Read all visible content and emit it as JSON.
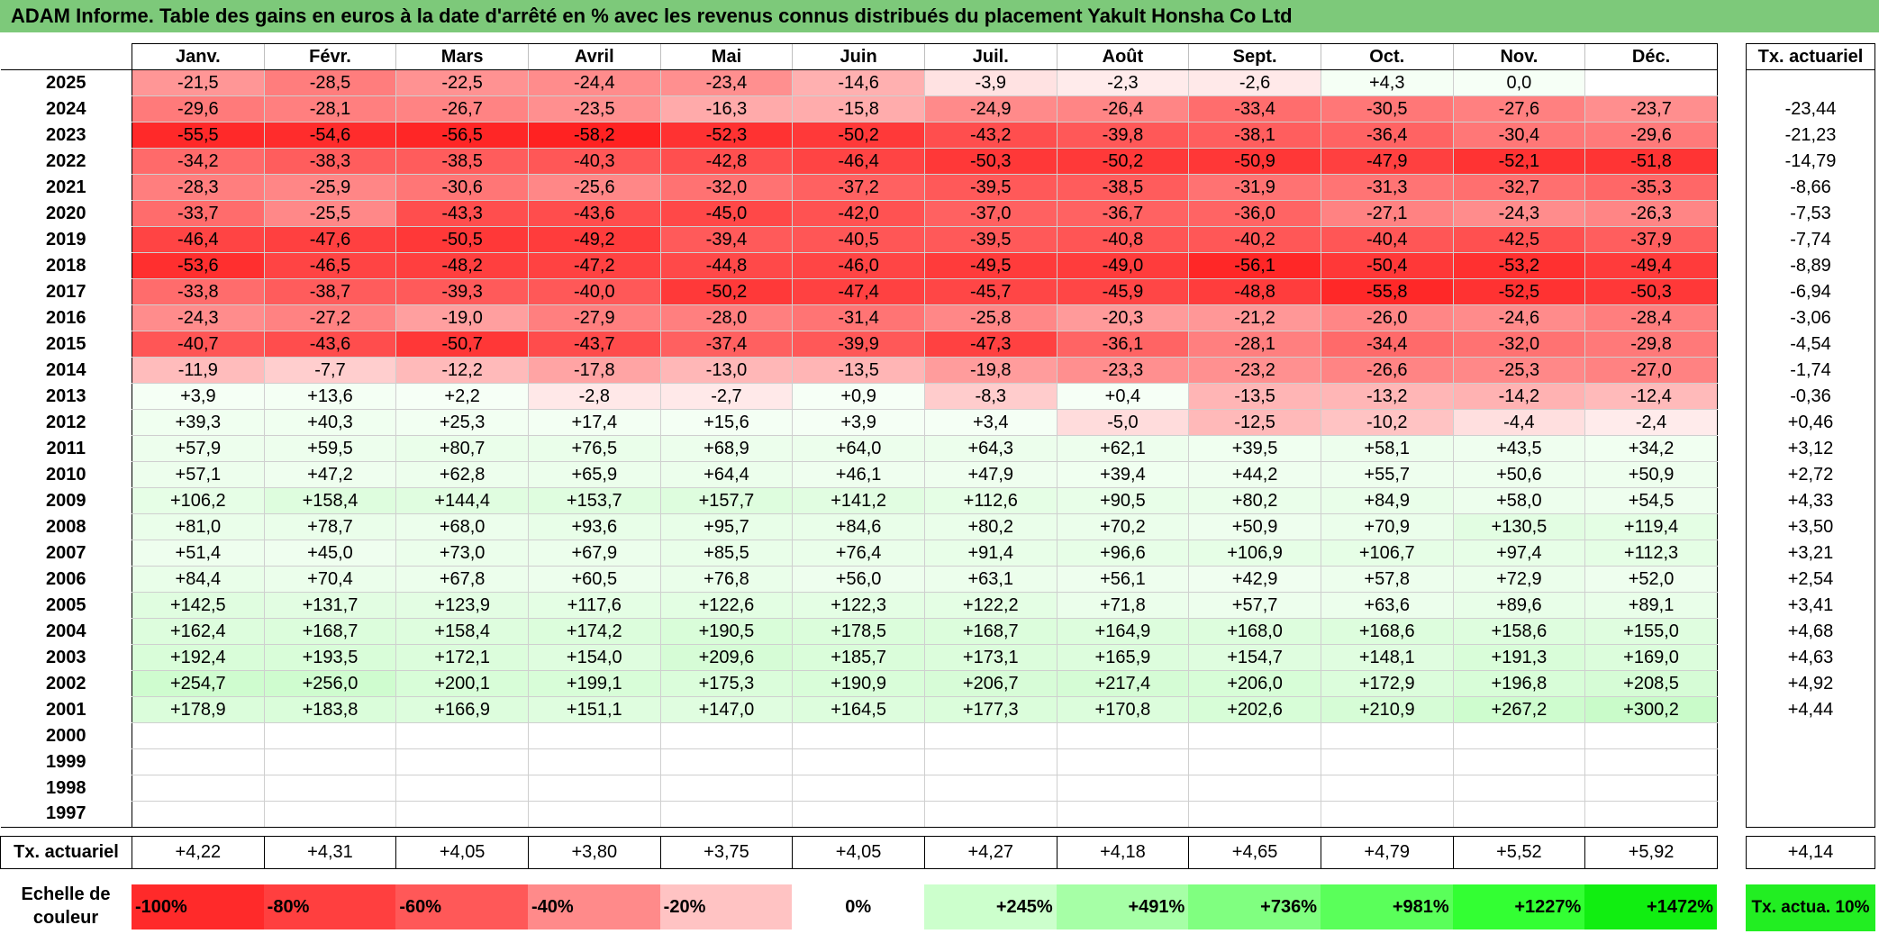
{
  "title": "ADAM Informe. Table des gains en euros à la date d'arrêté en % avec les revenus connus distribués du placement Yakult Honsha Co Ltd",
  "months": [
    "Janv.",
    "Févr.",
    "Mars",
    "Avril",
    "Mai",
    "Juin",
    "Juil.",
    "Août",
    "Sept.",
    "Oct.",
    "Nov.",
    "Déc."
  ],
  "actu_header": "Tx. actuariel",
  "rows": [
    {
      "year": "2025",
      "values": [
        "-21,5",
        "-28,5",
        "-22,5",
        "-24,4",
        "-23,4",
        "-14,6",
        "-3,9",
        "-2,3",
        "-2,6",
        "+4,3",
        "0,0",
        ""
      ],
      "actu": ""
    },
    {
      "year": "2024",
      "values": [
        "-29,6",
        "-28,1",
        "-26,7",
        "-23,5",
        "-16,3",
        "-15,8",
        "-24,9",
        "-26,4",
        "-33,4",
        "-30,5",
        "-27,6",
        "-23,7"
      ],
      "actu": "-23,44"
    },
    {
      "year": "2023",
      "values": [
        "-55,5",
        "-54,6",
        "-56,5",
        "-58,2",
        "-52,3",
        "-50,2",
        "-43,2",
        "-39,8",
        "-38,1",
        "-36,4",
        "-30,4",
        "-29,6"
      ],
      "actu": "-21,23"
    },
    {
      "year": "2022",
      "values": [
        "-34,2",
        "-38,3",
        "-38,5",
        "-40,3",
        "-42,8",
        "-46,4",
        "-50,3",
        "-50,2",
        "-50,9",
        "-47,9",
        "-52,1",
        "-51,8"
      ],
      "actu": "-14,79"
    },
    {
      "year": "2021",
      "values": [
        "-28,3",
        "-25,9",
        "-30,6",
        "-25,6",
        "-32,0",
        "-37,2",
        "-39,5",
        "-38,5",
        "-31,9",
        "-31,3",
        "-32,7",
        "-35,3"
      ],
      "actu": "-8,66"
    },
    {
      "year": "2020",
      "values": [
        "-33,7",
        "-25,5",
        "-43,3",
        "-43,6",
        "-45,0",
        "-42,0",
        "-37,0",
        "-36,7",
        "-36,0",
        "-27,1",
        "-24,3",
        "-26,3"
      ],
      "actu": "-7,53"
    },
    {
      "year": "2019",
      "values": [
        "-46,4",
        "-47,6",
        "-50,5",
        "-49,2",
        "-39,4",
        "-40,5",
        "-39,5",
        "-40,8",
        "-40,2",
        "-40,4",
        "-42,5",
        "-37,9"
      ],
      "actu": "-7,74"
    },
    {
      "year": "2018",
      "values": [
        "-53,6",
        "-46,5",
        "-48,2",
        "-47,2",
        "-44,8",
        "-46,0",
        "-49,5",
        "-49,0",
        "-56,1",
        "-50,4",
        "-53,2",
        "-49,4"
      ],
      "actu": "-8,89"
    },
    {
      "year": "2017",
      "values": [
        "-33,8",
        "-38,7",
        "-39,3",
        "-40,0",
        "-50,2",
        "-47,4",
        "-45,7",
        "-45,9",
        "-48,8",
        "-55,8",
        "-52,5",
        "-50,3"
      ],
      "actu": "-6,94"
    },
    {
      "year": "2016",
      "values": [
        "-24,3",
        "-27,2",
        "-19,0",
        "-27,9",
        "-28,0",
        "-31,4",
        "-25,8",
        "-20,3",
        "-21,2",
        "-26,0",
        "-24,6",
        "-28,4"
      ],
      "actu": "-3,06"
    },
    {
      "year": "2015",
      "values": [
        "-40,7",
        "-43,6",
        "-50,7",
        "-43,7",
        "-37,4",
        "-39,9",
        "-47,3",
        "-36,1",
        "-28,1",
        "-34,4",
        "-32,0",
        "-29,8"
      ],
      "actu": "-4,54"
    },
    {
      "year": "2014",
      "values": [
        "-11,9",
        "-7,7",
        "-12,2",
        "-17,8",
        "-13,0",
        "-13,5",
        "-19,8",
        "-23,3",
        "-23,2",
        "-26,6",
        "-25,3",
        "-27,0"
      ],
      "actu": "-1,74"
    },
    {
      "year": "2013",
      "values": [
        "+3,9",
        "+13,6",
        "+2,2",
        "-2,8",
        "-2,7",
        "+0,9",
        "-8,3",
        "+0,4",
        "-13,5",
        "-13,2",
        "-14,2",
        "-12,4"
      ],
      "actu": "-0,36"
    },
    {
      "year": "2012",
      "values": [
        "+39,3",
        "+40,3",
        "+25,3",
        "+17,4",
        "+15,6",
        "+3,9",
        "+3,4",
        "-5,0",
        "-12,5",
        "-10,2",
        "-4,4",
        "-2,4"
      ],
      "actu": "+0,46"
    },
    {
      "year": "2011",
      "values": [
        "+57,9",
        "+59,5",
        "+80,7",
        "+76,5",
        "+68,9",
        "+64,0",
        "+64,3",
        "+62,1",
        "+39,5",
        "+58,1",
        "+43,5",
        "+34,2"
      ],
      "actu": "+3,12"
    },
    {
      "year": "2010",
      "values": [
        "+57,1",
        "+47,2",
        "+62,8",
        "+65,9",
        "+64,4",
        "+46,1",
        "+47,9",
        "+39,4",
        "+44,2",
        "+55,7",
        "+50,6",
        "+50,9"
      ],
      "actu": "+2,72"
    },
    {
      "year": "2009",
      "values": [
        "+106,2",
        "+158,4",
        "+144,4",
        "+153,7",
        "+157,7",
        "+141,2",
        "+112,6",
        "+90,5",
        "+80,2",
        "+84,9",
        "+58,0",
        "+54,5"
      ],
      "actu": "+4,33"
    },
    {
      "year": "2008",
      "values": [
        "+81,0",
        "+78,7",
        "+68,0",
        "+93,6",
        "+95,7",
        "+84,6",
        "+80,2",
        "+70,2",
        "+50,9",
        "+70,9",
        "+130,5",
        "+119,4"
      ],
      "actu": "+3,50"
    },
    {
      "year": "2007",
      "values": [
        "+51,4",
        "+45,0",
        "+73,0",
        "+67,9",
        "+85,5",
        "+76,4",
        "+91,4",
        "+96,6",
        "+106,9",
        "+106,7",
        "+97,4",
        "+112,3"
      ],
      "actu": "+3,21"
    },
    {
      "year": "2006",
      "values": [
        "+84,4",
        "+70,4",
        "+67,8",
        "+60,5",
        "+76,8",
        "+56,0",
        "+63,1",
        "+56,1",
        "+42,9",
        "+57,8",
        "+72,9",
        "+52,0"
      ],
      "actu": "+2,54"
    },
    {
      "year": "2005",
      "values": [
        "+142,5",
        "+131,7",
        "+123,9",
        "+117,6",
        "+122,6",
        "+122,3",
        "+122,2",
        "+71,8",
        "+57,7",
        "+63,6",
        "+89,6",
        "+89,1"
      ],
      "actu": "+3,41"
    },
    {
      "year": "2004",
      "values": [
        "+162,4",
        "+168,7",
        "+158,4",
        "+174,2",
        "+190,5",
        "+178,5",
        "+168,7",
        "+164,9",
        "+168,0",
        "+168,6",
        "+158,6",
        "+155,0"
      ],
      "actu": "+4,68"
    },
    {
      "year": "2003",
      "values": [
        "+192,4",
        "+193,5",
        "+172,1",
        "+154,0",
        "+209,6",
        "+185,7",
        "+173,1",
        "+165,9",
        "+154,7",
        "+148,1",
        "+191,3",
        "+169,0"
      ],
      "actu": "+4,63"
    },
    {
      "year": "2002",
      "values": [
        "+254,7",
        "+256,0",
        "+200,1",
        "+199,1",
        "+175,3",
        "+190,9",
        "+206,7",
        "+217,4",
        "+206,0",
        "+172,9",
        "+196,8",
        "+208,5"
      ],
      "actu": "+4,92"
    },
    {
      "year": "2001",
      "values": [
        "+178,9",
        "+183,8",
        "+166,9",
        "+151,1",
        "+147,0",
        "+164,5",
        "+177,3",
        "+170,8",
        "+202,6",
        "+210,9",
        "+267,2",
        "+300,2"
      ],
      "actu": "+4,44"
    },
    {
      "year": "2000",
      "values": [
        "",
        "",
        "",
        "",
        "",
        "",
        "",
        "",
        "",
        "",
        "",
        ""
      ],
      "actu": ""
    },
    {
      "year": "1999",
      "values": [
        "",
        "",
        "",
        "",
        "",
        "",
        "",
        "",
        "",
        "",
        "",
        ""
      ],
      "actu": ""
    },
    {
      "year": "1998",
      "values": [
        "",
        "",
        "",
        "",
        "",
        "",
        "",
        "",
        "",
        "",
        "",
        ""
      ],
      "actu": ""
    },
    {
      "year": "1997",
      "values": [
        "",
        "",
        "",
        "",
        "",
        "",
        "",
        "",
        "",
        "",
        "",
        ""
      ],
      "actu": ""
    }
  ],
  "footer": {
    "label": "Tx. actuariel",
    "values": [
      "+4,22",
      "+4,31",
      "+4,05",
      "+3,80",
      "+3,75",
      "+4,05",
      "+4,27",
      "+4,18",
      "+4,65",
      "+4,79",
      "+5,52",
      "+5,92"
    ],
    "actu": "+4,14"
  },
  "scale": {
    "label": "Echelle de couleur",
    "cells": [
      {
        "label": "-100%",
        "color": "#ff2a2a"
      },
      {
        "label": "-80%",
        "color": "#ff3f3f"
      },
      {
        "label": "-60%",
        "color": "#ff5858"
      },
      {
        "label": "-40%",
        "color": "#ff8a8a"
      },
      {
        "label": "-20%",
        "color": "#ffc3c3"
      },
      {
        "label": "0%",
        "color": "#ffffff"
      },
      {
        "label": "+245%",
        "color": "#ccffcc"
      },
      {
        "label": "+491%",
        "color": "#a6ffa6"
      },
      {
        "label": "+736%",
        "color": "#80ff80"
      },
      {
        "label": "+981%",
        "color": "#5aff5a"
      },
      {
        "label": "+1227%",
        "color": "#33ff33"
      },
      {
        "label": "+1472%",
        "color": "#11ee11"
      }
    ],
    "actu_label": "Tx. actua. 10%",
    "actu_color": "#22ee22"
  },
  "colors": {
    "title_bg": "#7dc97a",
    "negative_max": "#ff2222",
    "positive_max": "#22ee22"
  }
}
